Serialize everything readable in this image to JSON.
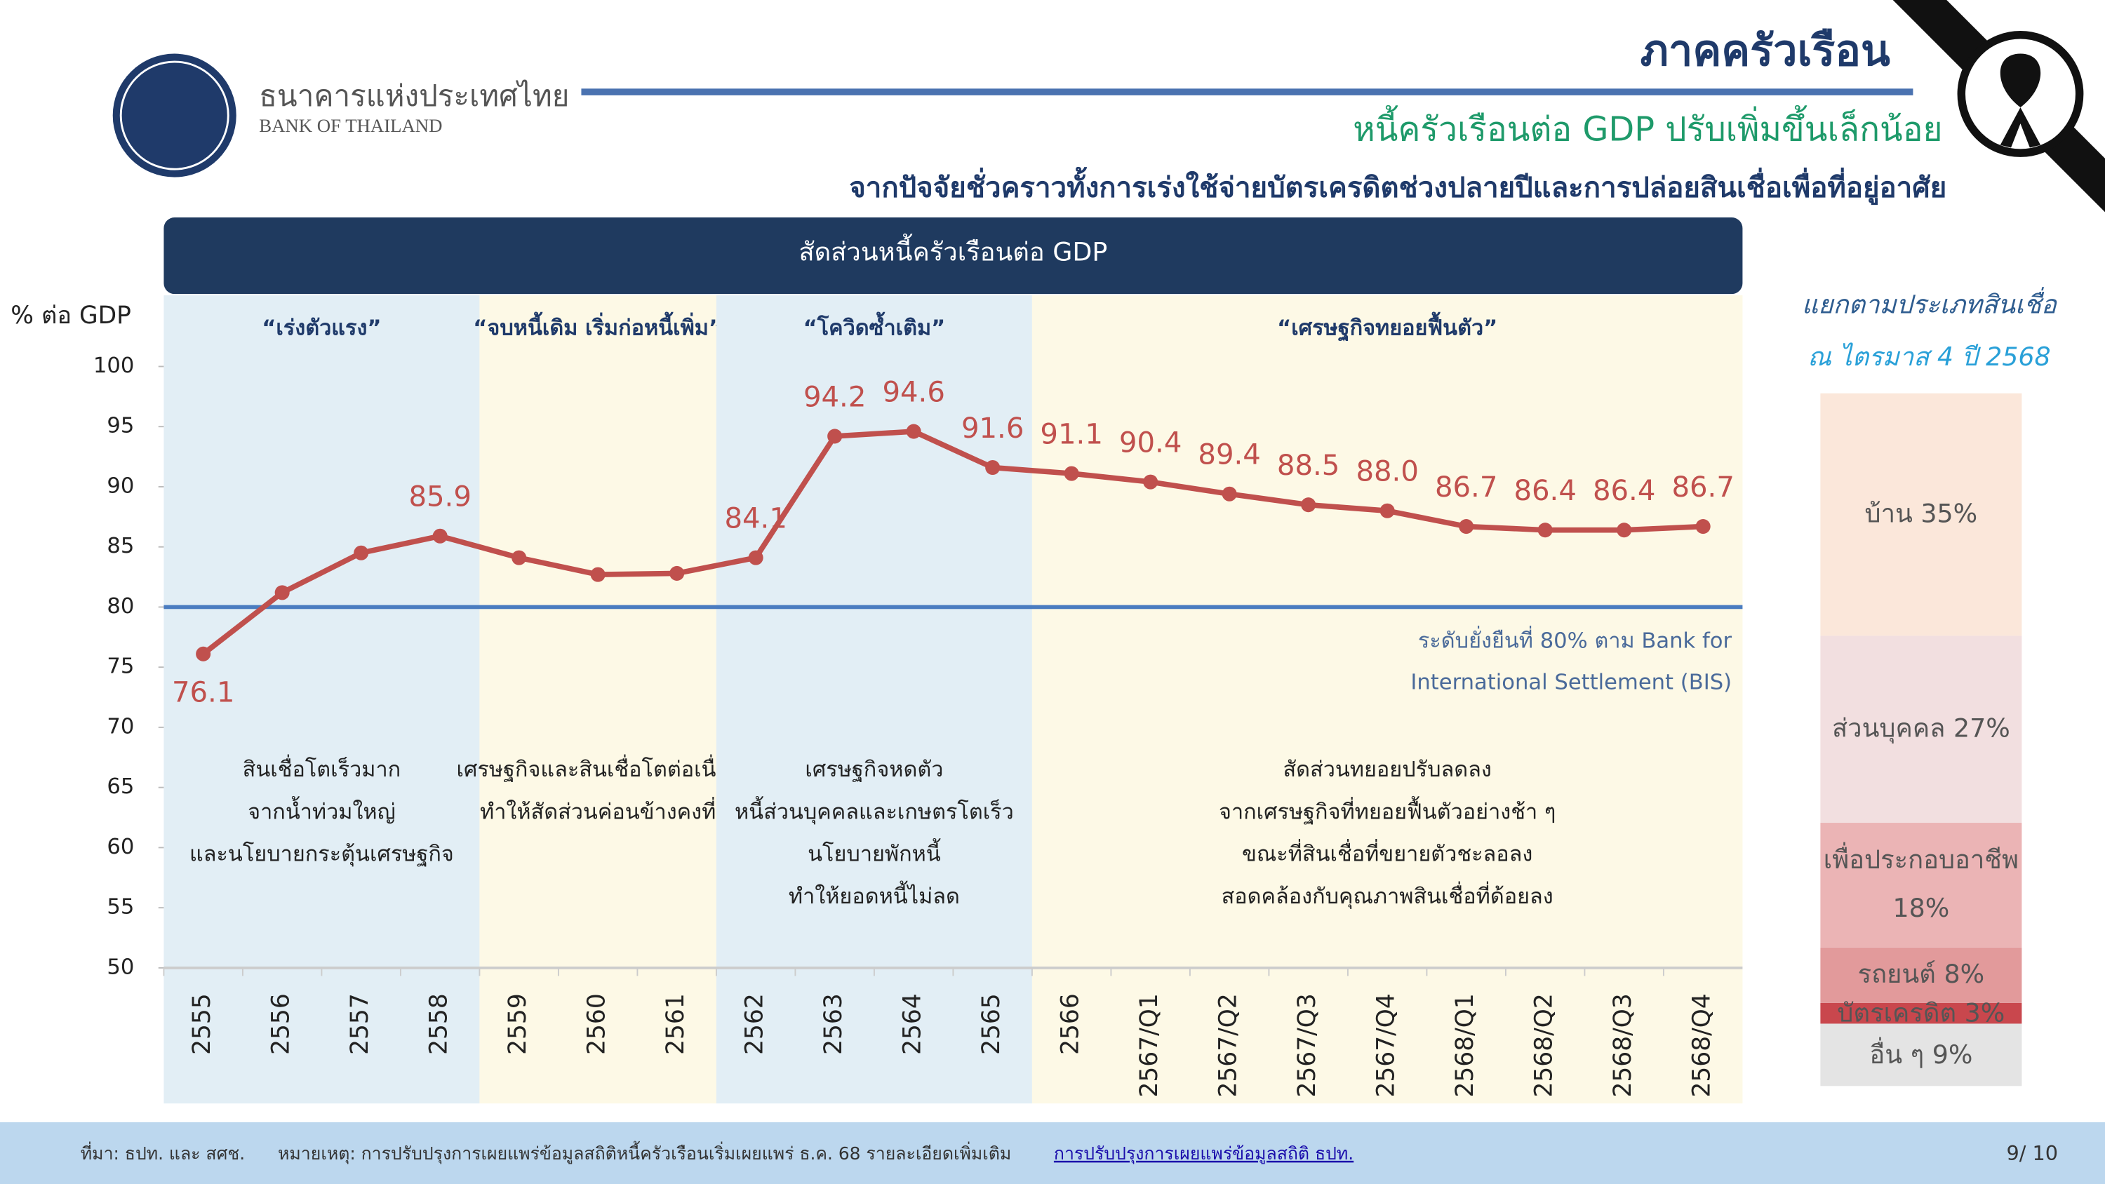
{
  "header": {
    "title": "ภาคครัวเรือน",
    "subtitle": "หนี้ครัวเรือนต่อ GDP ปรับเพิ่มขึ้นเล็กน้อย",
    "subtitle2": "จากปัจจัยชั่วคราวทั้งการเร่งใช้จ่ายบัตรเครดิตช่วงปลายปีและการปล่อยสินเชื่อเพื่อที่อยู่อาศัย",
    "org_th": "ธนาคารแห่งประเทศไทย",
    "org_en": "BANK OF THAILAND"
  },
  "chart_data": [
    {
      "type": "line",
      "title": "สัดส่วนหนี้ครัวเรือนต่อ GDP",
      "y_label": "% ต่อ GDP",
      "categories": [
        "2555",
        "2556",
        "2557",
        "2558",
        "2559",
        "2560",
        "2561",
        "2562",
        "2563",
        "2564",
        "2565",
        "2566",
        "2567/Q1",
        "2567/Q2",
        "2567/Q3",
        "2567/Q4",
        "2568/Q1",
        "2568/Q2",
        "2568/Q3",
        "2568/Q4"
      ],
      "values": [
        76.1,
        81.2,
        84.5,
        85.9,
        84.1,
        82.7,
        82.8,
        84.1,
        94.2,
        94.6,
        91.6,
        91.1,
        90.4,
        89.4,
        88.5,
        88.0,
        86.7,
        86.4,
        86.4,
        86.7
      ],
      "value_labels": [
        "76.1",
        null,
        null,
        "85.9",
        null,
        null,
        null,
        "84.1",
        "94.2",
        "94.6",
        "91.6",
        "91.1",
        "90.4",
        "89.4",
        "88.5",
        "88.0",
        "86.7",
        "86.4",
        "86.4",
        "86.7"
      ],
      "color": "#c0504d",
      "ylim": [
        50,
        100
      ],
      "yticks": [
        50,
        55,
        60,
        65,
        70,
        75,
        80,
        85,
        90,
        95,
        100
      ],
      "reference_line": {
        "value": 80,
        "color": "#4a7cc0",
        "label_lines": [
          "ระดับยั่งยืนที่ 80% ตาม Bank for",
          "International Settlement (BIS)"
        ]
      },
      "phases": [
        {
          "label": "“เร่งตัวแรง”",
          "from": "2555",
          "to": "2558",
          "color": "#e2eef5",
          "description": [
            "สินเชื่อโตเร็วมาก",
            "จากน้ำท่วมใหญ่",
            "และนโยบายกระตุ้นเศรษฐกิจ"
          ]
        },
        {
          "label": "“จบหนี้เดิม เริ่มก่อหนี้เพิ่ม”",
          "from": "2559",
          "to": "2561",
          "color": "#fdf9e6",
          "description": [
            "เศรษฐกิจและสินเชื่อโตต่อเนื่อง",
            "ทำให้สัดส่วนค่อนข้างคงที่"
          ]
        },
        {
          "label": "“โควิดซ้ำเติม”",
          "from": "2562",
          "to": "2565",
          "color": "#e2eef5",
          "description": [
            "เศรษฐกิจหดตัว",
            "หนี้ส่วนบุคคลและเกษตรโตเร็ว",
            "นโยบายพักหนี้",
            "ทำให้ยอดหนี้ไม่ลด"
          ]
        },
        {
          "label": "“เศรษฐกิจทยอยฟื้นตัว”",
          "from": "2566",
          "to": "2568/Q4",
          "color": "#fdf9e6",
          "description": [
            "สัดส่วนทยอยปรับลดลง",
            "จากเศรษฐกิจที่ทยอยฟื้นตัวอย่างช้า ๆ",
            "ขณะที่สินเชื่อที่ขยายตัวชะลอลง",
            "สอดคล้องกับคุณภาพสินเชื่อที่ด้อยลง"
          ]
        }
      ]
    },
    {
      "type": "stacked_bar",
      "title_lines": [
        "แยกตามประเภทสินเชื่อ",
        "ณ ไตรมาส 4 ปี 2568"
      ],
      "values": [
        9,
        3,
        8,
        18,
        27,
        35
      ],
      "value_labels": [
        "อื่น ๆ 9%",
        "บัตรเครดิต 3%",
        "รถยนต์ 8%",
        "เพื่อประกอบอาชีพ 18%",
        "ส่วนบุคคล 27%",
        "บ้าน 35%"
      ],
      "colors": [
        "#e4e4e4",
        "#c9474d",
        "#e29a9b",
        "#ebb4b5",
        "#f2dfe0",
        "#fbe7da"
      ]
    }
  ],
  "footer": {
    "source": "ที่มา: ธปท. และ สศช.",
    "note": "หมายเหตุ: การปรับปรุงการเผยแพร่ข้อมูลสถิติหนี้ครัวเรือนเริ่มเผยแพร่ ธ.ค. 68 รายละเอียดเพิ่มเติม",
    "link": "การปรับปรุงการเผยแพร่ข้อมูลสถิติ ธปท.",
    "page": "9/ 10"
  }
}
